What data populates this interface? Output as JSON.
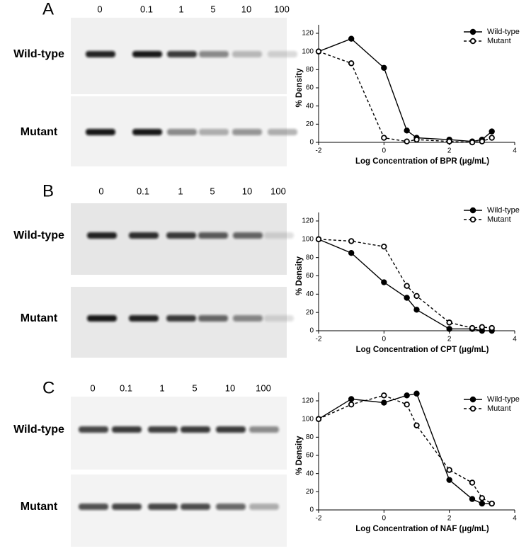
{
  "panels": [
    {
      "letter": "A",
      "concentrations": [
        "0",
        "0.1",
        "1",
        "5",
        "10",
        "100"
      ],
      "rows": [
        "Wild-type",
        "Mutant"
      ]
    },
    {
      "letter": "B",
      "concentrations": [
        "0",
        "0.1",
        "1",
        "5",
        "10",
        "100"
      ],
      "rows": [
        "Wild-type",
        "Mutant"
      ]
    },
    {
      "letter": "C",
      "concentrations": [
        "0",
        "0.1",
        "1",
        "5",
        "10",
        "100"
      ],
      "rows": [
        "Wild-type",
        "Mutant"
      ]
    }
  ],
  "chart_data": [
    {
      "type": "line",
      "x_label": "Log Concentration of BPR (μg/mL)",
      "y_label": "% Density",
      "x": [
        -2,
        -1,
        0,
        0.7,
        1,
        2,
        2.7,
        3,
        3.3
      ],
      "series": [
        {
          "name": "Wild-type",
          "color": "#000000",
          "dashed": false,
          "marker": "filled",
          "values": [
            100,
            114,
            82,
            13,
            5,
            3,
            1,
            3,
            12
          ]
        },
        {
          "name": "Mutant",
          "color": "#000000",
          "dashed": true,
          "marker": "open",
          "values": [
            100,
            87,
            5,
            1,
            3,
            1,
            0,
            1,
            5
          ]
        }
      ],
      "xlim": [
        -2,
        4
      ],
      "xticks": [
        -2,
        0,
        2,
        4
      ],
      "ylim": [
        0,
        120
      ],
      "yticks": [
        0,
        20,
        40,
        60,
        80,
        100,
        120
      ],
      "legend": "top-right"
    },
    {
      "type": "line",
      "x_label": "Log Concentration of CPT (μg/mL)",
      "y_label": "% Density",
      "x": [
        -2,
        -1,
        0,
        0.7,
        1,
        2,
        2.7,
        3,
        3.3
      ],
      "series": [
        {
          "name": "Wild-type",
          "color": "#000000",
          "dashed": false,
          "marker": "filled",
          "values": [
            100,
            85,
            53,
            36,
            23,
            2,
            2,
            0,
            0
          ]
        },
        {
          "name": "Mutant",
          "color": "#000000",
          "dashed": true,
          "marker": "open",
          "values": [
            100,
            98,
            92,
            49,
            38,
            9,
            3,
            4,
            3
          ]
        }
      ],
      "xlim": [
        -2,
        4
      ],
      "xticks": [
        -2,
        0,
        2,
        4
      ],
      "ylim": [
        0,
        120
      ],
      "yticks": [
        0,
        20,
        40,
        60,
        80,
        100,
        120
      ],
      "legend": "top-right"
    },
    {
      "type": "line",
      "x_label": "Log Concentration of NAF (μg/mL)",
      "y_label": "% Density",
      "x": [
        -2,
        -1,
        0,
        0.7,
        1,
        2,
        2.7,
        3,
        3.3
      ],
      "series": [
        {
          "name": "Wild-type",
          "color": "#000000",
          "dashed": false,
          "marker": "filled",
          "values": [
            100,
            122,
            118,
            126,
            128,
            33,
            12,
            7,
            7
          ]
        },
        {
          "name": "Mutant",
          "color": "#000000",
          "dashed": true,
          "marker": "open",
          "values": [
            100,
            116,
            126,
            116,
            93,
            44,
            30,
            13,
            7
          ]
        }
      ],
      "xlim": [
        -2,
        4
      ],
      "xticks": [
        -2,
        0,
        2,
        4
      ],
      "ylim": [
        0,
        120
      ],
      "yticks": [
        0,
        20,
        40,
        60,
        80,
        100,
        120
      ],
      "legend": "top-right"
    }
  ]
}
